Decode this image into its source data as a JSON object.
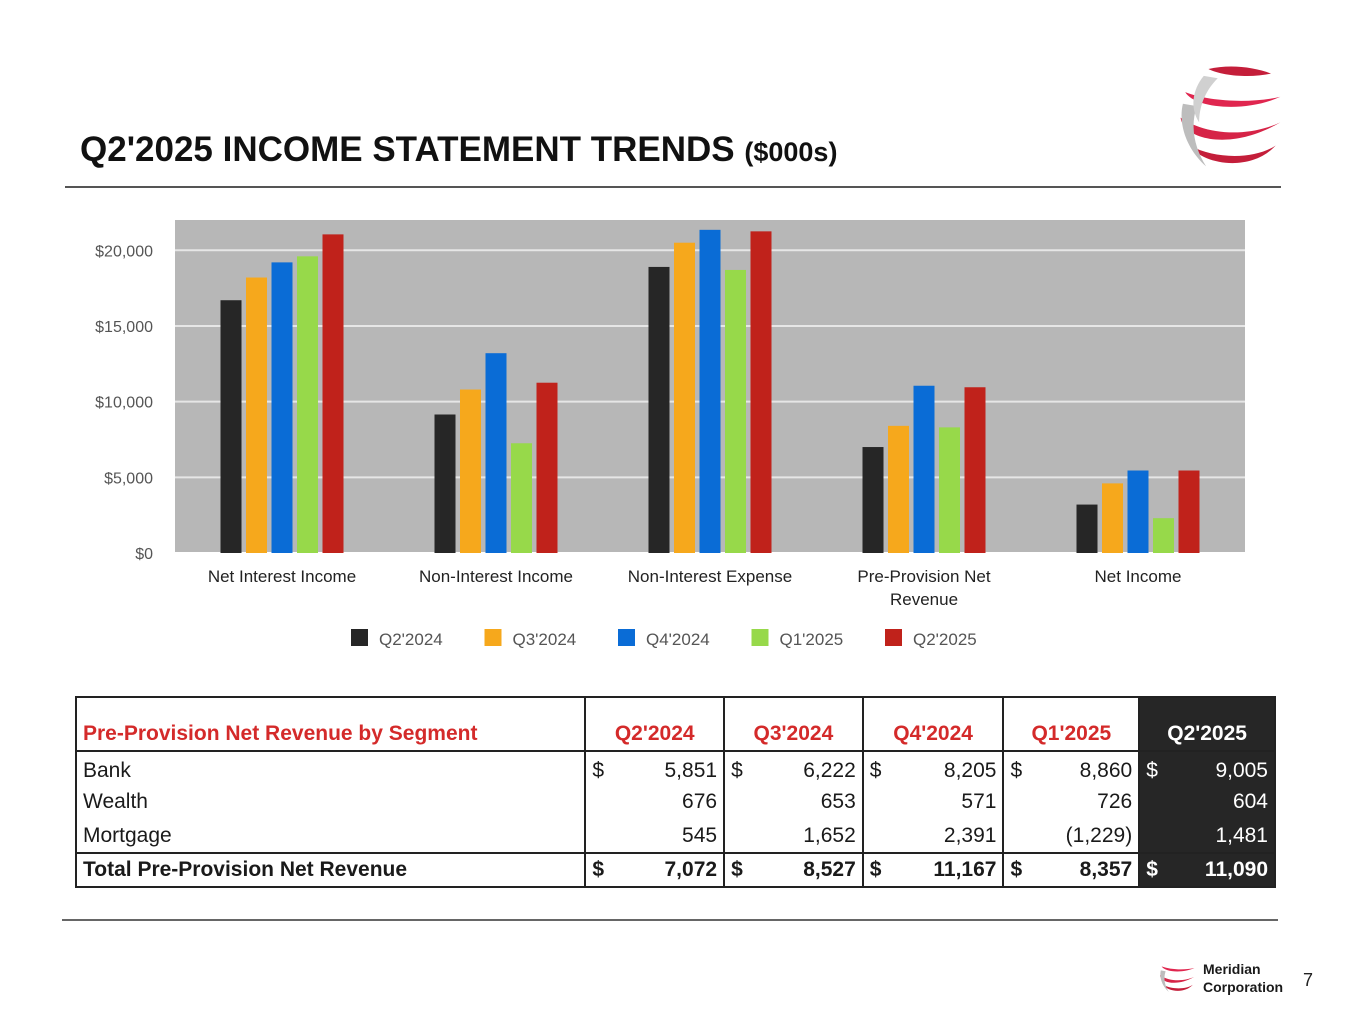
{
  "page": {
    "title": "Q2'2025 INCOME STATEMENT TRENDS",
    "units": "($000s)",
    "page_number": "7",
    "footer": {
      "name_line1": "Meridian",
      "name_line2": "Corporation"
    }
  },
  "colors": {
    "plot_background": "#b7b7b7",
    "gridline": "#e6e6e6",
    "brand_red": "#d42a2a",
    "series": [
      "#262626",
      "#f6a81c",
      "#0a6cd6",
      "#97d94a",
      "#c0221b"
    ]
  },
  "chart_data": {
    "type": "bar",
    "title": "",
    "xlabel": "",
    "ylabel": "",
    "ylim": [
      0,
      22000
    ],
    "yticks": [
      0,
      5000,
      10000,
      15000,
      20000
    ],
    "ytick_labels": [
      "$0",
      "$5,000",
      "$10,000",
      "$15,000",
      "$20,000"
    ],
    "categories": [
      [
        "Net Interest Income"
      ],
      [
        "Non-Interest Income"
      ],
      [
        "Non-Interest Expense"
      ],
      [
        "Pre-Provision Net",
        "Revenue"
      ],
      [
        "Net Income"
      ]
    ],
    "series": [
      {
        "name": "Q2'2024",
        "values": [
          16700,
          9150,
          18900,
          7000,
          3200
        ]
      },
      {
        "name": "Q3'2024",
        "values": [
          18200,
          10800,
          20500,
          8400,
          4600
        ]
      },
      {
        "name": "Q4'2024",
        "values": [
          19200,
          13200,
          21350,
          11050,
          5450
        ]
      },
      {
        "name": "Q1'2025",
        "values": [
          19600,
          7250,
          18700,
          8300,
          2300
        ]
      },
      {
        "name": "Q2'2025",
        "values": [
          21050,
          11250,
          21250,
          10950,
          5450
        ]
      }
    ],
    "legend_position": "bottom",
    "grid": true
  },
  "table": {
    "title": "Pre-Provision Net Revenue by Segment",
    "headers": [
      "Q2'2024",
      "Q3'2024",
      "Q4'2024",
      "Q1'2025",
      "Q2'2025"
    ],
    "rows": [
      {
        "label": "Bank",
        "cur": [
          "$",
          "$",
          "$",
          "$",
          "$"
        ],
        "values": [
          "5,851",
          "6,222",
          "8,205",
          "8,860",
          "9,005"
        ]
      },
      {
        "label": "Wealth",
        "cur": [
          "",
          "",
          "",
          "",
          ""
        ],
        "values": [
          "676",
          "653",
          "571",
          "726",
          "604"
        ]
      },
      {
        "label": "Mortgage",
        "cur": [
          "",
          "",
          "",
          "",
          ""
        ],
        "values": [
          "545",
          "1,652",
          "2,391",
          "(1,229)",
          "1,481"
        ]
      }
    ],
    "total": {
      "label": "Total Pre-Provision Net Revenue",
      "cur": [
        "$",
        "$",
        "$",
        "$",
        "$"
      ],
      "values": [
        "7,072",
        "8,527",
        "11,167",
        "8,357",
        "11,090"
      ]
    }
  }
}
